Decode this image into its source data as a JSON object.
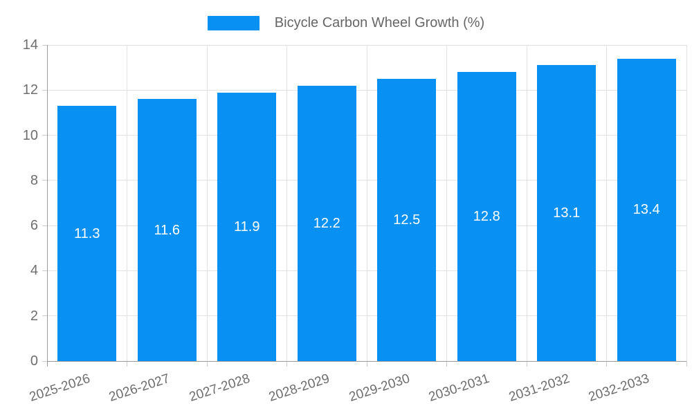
{
  "chart_data": {
    "type": "bar",
    "title": "Bicycle Carbon Wheel Growth (%)",
    "legend": [
      "Bicycle Carbon Wheel Growth (%)"
    ],
    "legend_position": "top-center",
    "categories": [
      "2025-2026",
      "2026-2027",
      "2027-2028",
      "2028-2029",
      "2029-2030",
      "2030-2031",
      "2031-2032",
      "2032-2033"
    ],
    "values": [
      11.3,
      11.6,
      11.9,
      12.2,
      12.5,
      12.8,
      13.1,
      13.4
    ],
    "bar_value_labels": [
      "11.3",
      "11.6",
      "11.9",
      "12.2",
      "12.5",
      "12.8",
      "13.1",
      "13.4"
    ],
    "xlabel": "",
    "ylabel": "",
    "ylim": [
      0,
      14
    ],
    "yticks": [
      0,
      2,
      4,
      6,
      8,
      10,
      12,
      14
    ],
    "grid": true,
    "value_labels_inside_bars": true,
    "x_label_rotation_deg": -18,
    "colors": {
      "bar": "#0890f2",
      "value_label": "#ffffff",
      "axis_text": "#6e6e6e",
      "legend_text": "#666666",
      "grid_line": "#e2e2e2",
      "tick_line": "#cccccc",
      "axis_line": "#999999",
      "background": "#ffffff"
    }
  }
}
